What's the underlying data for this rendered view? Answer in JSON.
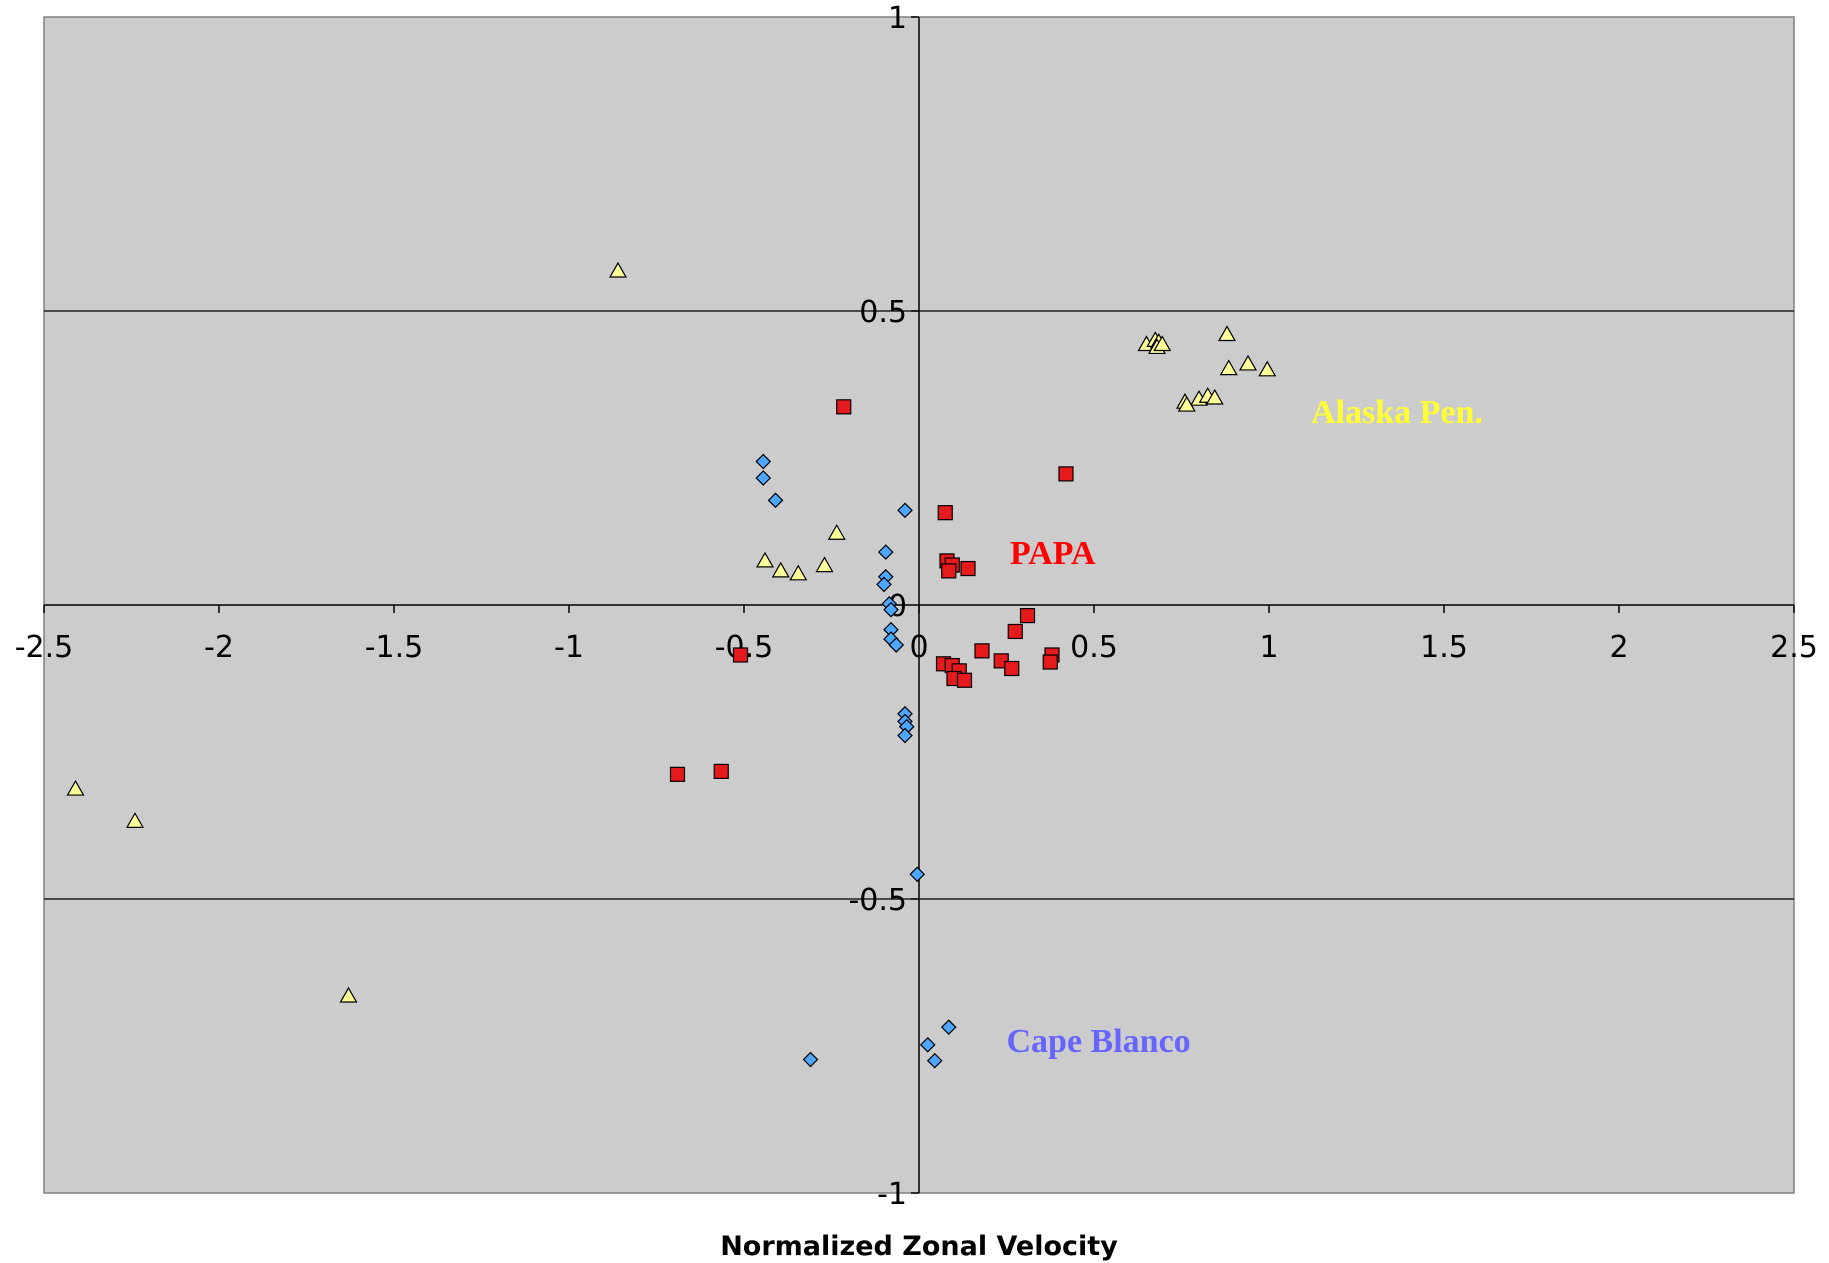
{
  "chart_data": {
    "type": "scatter",
    "title": "",
    "xlabel": "Normalized Zonal Velocity",
    "ylabel": "",
    "xlim": [
      -2.5,
      2.5
    ],
    "ylim": [
      -1,
      1
    ],
    "x_ticks": [
      "-2.5",
      "-2",
      "-1.5",
      "-1",
      "-0.5",
      "0",
      "0.5",
      "1",
      "1.5",
      "2",
      "2.5"
    ],
    "y_ticks": [
      "1",
      "0.5",
      "-0.5",
      "-1"
    ],
    "y_zero_label": "0",
    "grid": "horizontal major gridlines",
    "background": "#cccccc",
    "annotations": [
      {
        "text": "Alaska Pen.",
        "x": 1.12,
        "y": 0.33,
        "color": "#ffff33"
      },
      {
        "text": "PAPA",
        "x": 0.26,
        "y": 0.09,
        "color": "#ff0000"
      },
      {
        "text": "Cape Blanco",
        "x": 0.25,
        "y": -0.74,
        "color": "#6666ff"
      }
    ],
    "series": [
      {
        "marker": "diamond",
        "fill": "#4da6ff",
        "points": [
          [
            -0.445,
            0.244
          ],
          [
            -0.445,
            0.216
          ],
          [
            -0.41,
            0.178
          ],
          [
            -0.04,
            0.161
          ],
          [
            -0.095,
            0.09
          ],
          [
            -0.095,
            0.048
          ],
          [
            -0.1,
            0.035
          ],
          [
            -0.085,
            0.002
          ],
          [
            -0.08,
            -0.008
          ],
          [
            -0.08,
            -0.042
          ],
          [
            -0.08,
            -0.058
          ],
          [
            -0.065,
            -0.068
          ],
          [
            -0.04,
            -0.185
          ],
          [
            -0.04,
            -0.198
          ],
          [
            -0.035,
            -0.207
          ],
          [
            -0.04,
            -0.222
          ],
          [
            -0.005,
            -0.458
          ],
          [
            0.085,
            -0.718
          ],
          [
            0.025,
            -0.748
          ],
          [
            0.045,
            -0.775
          ],
          [
            -0.31,
            -0.773
          ]
        ]
      },
      {
        "marker": "square",
        "fill": "#e41a1c",
        "points": [
          [
            -0.215,
            0.337
          ],
          [
            0.42,
            0.223
          ],
          [
            0.075,
            0.157
          ],
          [
            0.08,
            0.075
          ],
          [
            0.095,
            0.068
          ],
          [
            0.085,
            0.058
          ],
          [
            0.14,
            0.062
          ],
          [
            0.31,
            -0.018
          ],
          [
            0.275,
            -0.045
          ],
          [
            0.18,
            -0.078
          ],
          [
            0.38,
            -0.085
          ],
          [
            0.235,
            -0.095
          ],
          [
            0.375,
            -0.097
          ],
          [
            0.265,
            -0.108
          ],
          [
            0.07,
            -0.1
          ],
          [
            0.095,
            -0.103
          ],
          [
            0.115,
            -0.112
          ],
          [
            0.1,
            -0.125
          ],
          [
            0.13,
            -0.128
          ],
          [
            -0.51,
            -0.085
          ],
          [
            -0.565,
            -0.283
          ],
          [
            -0.69,
            -0.288
          ]
        ]
      },
      {
        "marker": "triangle",
        "fill": "#ffff99",
        "points": [
          [
            -0.86,
            0.568
          ],
          [
            0.88,
            0.46
          ],
          [
            0.65,
            0.443
          ],
          [
            0.675,
            0.45
          ],
          [
            0.685,
            0.447
          ],
          [
            0.68,
            0.438
          ],
          [
            0.695,
            0.443
          ],
          [
            0.94,
            0.41
          ],
          [
            0.885,
            0.402
          ],
          [
            0.995,
            0.4
          ],
          [
            0.76,
            0.345
          ],
          [
            0.8,
            0.35
          ],
          [
            0.825,
            0.355
          ],
          [
            0.845,
            0.352
          ],
          [
            0.765,
            0.34
          ],
          [
            -0.235,
            0.122
          ],
          [
            -0.44,
            0.075
          ],
          [
            -0.395,
            0.058
          ],
          [
            -0.345,
            0.053
          ],
          [
            -0.27,
            0.067
          ],
          [
            -2.41,
            -0.313
          ],
          [
            -2.24,
            -0.368
          ],
          [
            -1.63,
            -0.665
          ]
        ]
      }
    ]
  }
}
